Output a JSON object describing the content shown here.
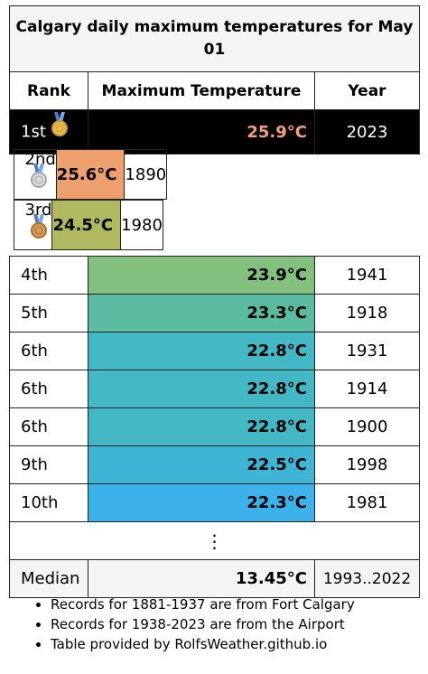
{
  "table": {
    "title": "Calgary daily maximum temperatures for May 01",
    "headers": {
      "rank": "Rank",
      "temp": "Maximum Temperature",
      "year": "Year"
    },
    "rows": [
      {
        "rank": "1st",
        "temp": "25.9°C",
        "year": "2023",
        "color": "#000000",
        "medal": "gold"
      },
      {
        "rank": "2nd",
        "temp": "25.6°C",
        "year": "1890",
        "color": "#ee9f6e",
        "medal": "silver"
      },
      {
        "rank": "3rd",
        "temp": "24.5°C",
        "year": "1980",
        "color": "#b0b860",
        "medal": "bronze"
      },
      {
        "rank": "4th",
        "temp": "23.9°C",
        "year": "1941",
        "color": "#83c07d"
      },
      {
        "rank": "5th",
        "temp": "23.3°C",
        "year": "1918",
        "color": "#5abba0"
      },
      {
        "rank": "6th",
        "temp": "22.8°C",
        "year": "1931",
        "color": "#43b7c3"
      },
      {
        "rank": "6th",
        "temp": "22.8°C",
        "year": "1914",
        "color": "#43b7c3"
      },
      {
        "rank": "6th",
        "temp": "22.8°C",
        "year": "1900",
        "color": "#43b7c3"
      },
      {
        "rank": "9th",
        "temp": "22.5°C",
        "year": "1998",
        "color": "#3fb5d6"
      },
      {
        "rank": "10th",
        "temp": "22.3°C",
        "year": "1981",
        "color": "#3db2ea"
      }
    ],
    "ellipsis": "⋮",
    "median": {
      "label": "Median",
      "temp": "13.45°C",
      "years": "1993..2022"
    }
  },
  "notes": [
    "Records for 1881-1937 are from Fort Calgary",
    "Records for 1938-2023 are from the Airport",
    "Table provided by RolfsWeather.github.io"
  ]
}
